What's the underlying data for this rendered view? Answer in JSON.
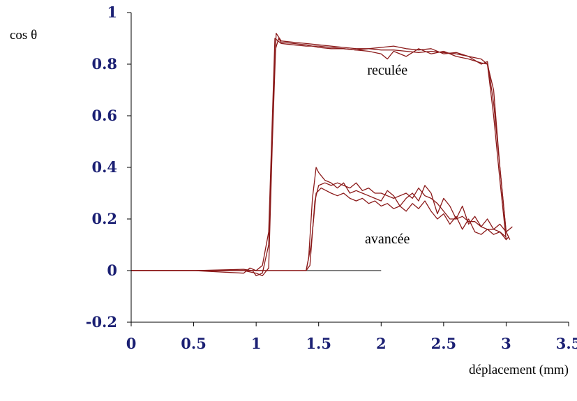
{
  "chart_data": {
    "type": "line",
    "title": "",
    "ylabel": "cos θ",
    "xlabel": "déplacement (mm)",
    "xlim": [
      0,
      3.5
    ],
    "ylim": [
      -0.2,
      1
    ],
    "x_ticks": [
      0,
      0.5,
      1,
      1.5,
      2,
      2.5,
      3,
      3.5
    ],
    "x_tick_labels": [
      "0",
      "0.5",
      "1",
      "1.5",
      "2",
      "2.5",
      "3",
      "3.5"
    ],
    "y_ticks": [
      -0.2,
      0,
      0.2,
      0.4,
      0.6,
      0.8,
      1
    ],
    "y_tick_labels": [
      "-0.2",
      "0",
      "0.2",
      "0.4",
      "0.6",
      "0.8",
      "1"
    ],
    "grid": false,
    "legend": "none",
    "annotations": [
      {
        "text": "reculée",
        "x": 2.05,
        "y": 0.76
      },
      {
        "text": "avancée",
        "x": 2.05,
        "y": 0.105
      }
    ],
    "colors": {
      "series": "#8b1a1a",
      "baseline": "#000000",
      "axes": "#000000",
      "ticks": "#1a1f73"
    },
    "reference_line": {
      "x": [
        0,
        2.0
      ],
      "y": [
        0,
        0
      ]
    },
    "series": [
      {
        "x": [
          0,
          0.5,
          0.9,
          1.0,
          1.05,
          1.1,
          1.13,
          1.16,
          1.2,
          1.3,
          1.4,
          1.5,
          1.6,
          1.7,
          1.8,
          1.9,
          2.0,
          2.1,
          2.2,
          2.3,
          2.4,
          2.5,
          2.6,
          2.7,
          2.8,
          2.85,
          2.9,
          2.95,
          3.0,
          3.02
        ],
        "y": [
          0,
          0,
          0,
          -0.01,
          -0.02,
          0.01,
          0.5,
          0.92,
          0.89,
          0.885,
          0.88,
          0.875,
          0.87,
          0.865,
          0.86,
          0.86,
          0.855,
          0.855,
          0.85,
          0.845,
          0.85,
          0.845,
          0.84,
          0.83,
          0.8,
          0.81,
          0.65,
          0.4,
          0.15,
          0.13
        ]
      },
      {
        "x": [
          0,
          0.5,
          0.9,
          0.97,
          1.0,
          1.05,
          1.1,
          1.15,
          1.18,
          1.2,
          1.3,
          1.4,
          1.5,
          1.6,
          1.7,
          1.8,
          1.9,
          2.0,
          2.1,
          2.2,
          2.3,
          2.4,
          2.5,
          2.6,
          2.7,
          2.8,
          2.85,
          2.9,
          2.95,
          3.0,
          3.03
        ],
        "y": [
          0,
          0,
          0.005,
          0,
          -0.02,
          -0.01,
          0.1,
          0.85,
          0.9,
          0.885,
          0.88,
          0.875,
          0.865,
          0.86,
          0.86,
          0.855,
          0.86,
          0.865,
          0.87,
          0.86,
          0.855,
          0.86,
          0.84,
          0.845,
          0.83,
          0.82,
          0.8,
          0.7,
          0.4,
          0.15,
          0.12
        ]
      },
      {
        "x": [
          0,
          0.5,
          0.9,
          0.95,
          1.0,
          1.05,
          1.1,
          1.15,
          1.2,
          1.3,
          1.4,
          1.5,
          1.6,
          1.7,
          1.8,
          1.9,
          2.0,
          2.05,
          2.1,
          2.2,
          2.3,
          2.4,
          2.5,
          2.6,
          2.7,
          2.8,
          2.85,
          2.9,
          2.95,
          3.0,
          3.02
        ],
        "y": [
          0,
          0,
          -0.01,
          0.01,
          0,
          0.02,
          0.15,
          0.9,
          0.88,
          0.875,
          0.87,
          0.87,
          0.865,
          0.86,
          0.855,
          0.85,
          0.84,
          0.82,
          0.85,
          0.83,
          0.86,
          0.84,
          0.85,
          0.83,
          0.82,
          0.805,
          0.8,
          0.6,
          0.35,
          0.12,
          0.13
        ]
      },
      {
        "x": [
          0,
          1.0,
          1.4,
          1.42,
          1.45,
          1.48,
          1.5,
          1.55,
          1.6,
          1.65,
          1.7,
          1.75,
          1.8,
          1.85,
          1.9,
          1.95,
          2.0,
          2.05,
          2.1,
          2.15,
          2.2,
          2.25,
          2.3,
          2.35,
          2.4,
          2.45,
          2.5,
          2.55,
          2.6,
          2.65,
          2.7,
          2.75,
          2.8,
          2.85,
          2.9,
          2.95,
          3.0,
          3.05
        ],
        "y": [
          0,
          0,
          0,
          0.05,
          0.28,
          0.4,
          0.38,
          0.35,
          0.34,
          0.32,
          0.34,
          0.3,
          0.31,
          0.3,
          0.29,
          0.28,
          0.27,
          0.31,
          0.29,
          0.25,
          0.28,
          0.3,
          0.27,
          0.33,
          0.3,
          0.22,
          0.28,
          0.25,
          0.2,
          0.25,
          0.18,
          0.21,
          0.17,
          0.2,
          0.16,
          0.18,
          0.15,
          0.17
        ]
      },
      {
        "x": [
          0,
          1.0,
          1.4,
          1.43,
          1.47,
          1.5,
          1.55,
          1.6,
          1.65,
          1.7,
          1.75,
          1.8,
          1.85,
          1.9,
          1.95,
          2.0,
          2.05,
          2.1,
          2.15,
          2.2,
          2.25,
          2.3,
          2.35,
          2.4,
          2.45,
          2.5,
          2.55,
          2.6,
          2.65,
          2.7,
          2.75,
          2.8,
          2.85,
          2.9,
          2.95,
          3.0
        ],
        "y": [
          0,
          0,
          0,
          0.02,
          0.27,
          0.33,
          0.34,
          0.33,
          0.34,
          0.33,
          0.32,
          0.34,
          0.31,
          0.32,
          0.3,
          0.3,
          0.29,
          0.28,
          0.29,
          0.3,
          0.28,
          0.32,
          0.29,
          0.28,
          0.26,
          0.23,
          0.2,
          0.2,
          0.21,
          0.19,
          0.19,
          0.17,
          0.16,
          0.16,
          0.15,
          0.13
        ]
      },
      {
        "x": [
          0,
          1.0,
          1.4,
          1.44,
          1.48,
          1.52,
          1.56,
          1.6,
          1.65,
          1.7,
          1.75,
          1.8,
          1.85,
          1.9,
          1.95,
          2.0,
          2.05,
          2.1,
          2.15,
          2.2,
          2.25,
          2.3,
          2.35,
          2.4,
          2.45,
          2.5,
          2.55,
          2.6,
          2.65,
          2.7,
          2.75,
          2.8,
          2.85,
          2.9,
          2.95,
          3.0,
          3.02
        ],
        "y": [
          0,
          0,
          0,
          0.1,
          0.3,
          0.32,
          0.31,
          0.3,
          0.29,
          0.3,
          0.28,
          0.27,
          0.28,
          0.26,
          0.27,
          0.25,
          0.26,
          0.24,
          0.25,
          0.23,
          0.26,
          0.24,
          0.27,
          0.23,
          0.2,
          0.22,
          0.18,
          0.21,
          0.16,
          0.2,
          0.15,
          0.14,
          0.16,
          0.14,
          0.15,
          0.12,
          0.13
        ]
      }
    ]
  }
}
